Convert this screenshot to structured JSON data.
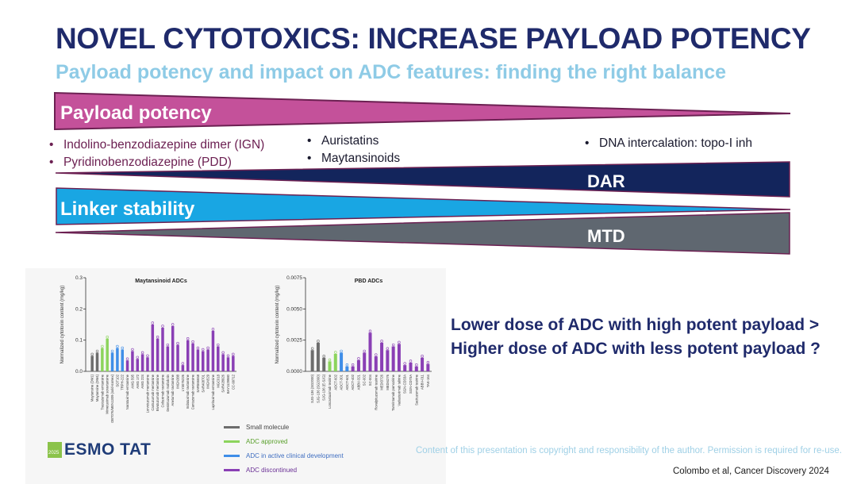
{
  "slide": {
    "title": "NOVEL CYTOTOXICS: INCREASE PAYLOAD POTENCY",
    "subtitle": "Payload potency and impact on ADC features: finding the right balance",
    "wedges": {
      "payload_potency": "Payload potency",
      "dar": "DAR",
      "linker_stability": "Linker stability",
      "mtd": "MTD"
    },
    "payload_classes": {
      "left": [
        "Indolino-benzodiazepine dimer (IGN)",
        "Pyridinobenzodiazepine (PDD)"
      ],
      "middle": [
        "Auristatins",
        "Maytansinoids"
      ],
      "right": [
        "DNA intercalation: topo-I inh"
      ]
    },
    "question_line1": "Lower dose of ADC with high potent payload >",
    "question_line2": "Higher dose of ADC with less potent payload ?",
    "copyright": "Content of this presentation is copyright and responsibility of the author. Permission is required for re-use.",
    "citation": "Colombo et al, Cancer Discovery 2024",
    "logo": {
      "year": "2025",
      "text": "ESMO TAT"
    },
    "colors": {
      "title": "#1f2a6b",
      "subtitle": "#8ecbe6",
      "potency": "#c4519a",
      "dar": "#13255c",
      "linker": "#19a6e3",
      "mtd": "#5f6770",
      "wedge_border": "#6c2052",
      "small_molecule": "#6d6d6d",
      "adc_approved": "#8cd45c",
      "adc_clinical": "#3f8ee8",
      "adc_discontinued": "#8a3fb5"
    }
  },
  "chart_data": [
    {
      "type": "bar",
      "title": "Maytansinoid ADCs",
      "ylabel": "Normalized cytotoxin content (mg/kg)",
      "ylim": [
        0,
        0.3
      ],
      "yticks": [
        "0.0",
        "0.1",
        "0.2",
        "0.3"
      ],
      "categories": [
        "Maytansine (DM1)",
        "Maytansine (DM4)",
        "Trastuzumab emtansine",
        "Mirvetuximab soravtansine",
        "OBT076/MEN1309 (sold-namex)",
        "SOT102",
        "TRPH-222",
        "Naratuximab emtansine",
        "AMG 595",
        "AMG 172",
        "AMG 224",
        "Lorvotuzumab mertansine",
        "Cantuzumab mertansine",
        "Bivatuzumab mertansine",
        "Coltuximab ravtansine",
        "Denintuzumab mafodotin",
        "Anetumab ravtansine",
        "IMGN388",
        "LY3076226",
        "Indatuximab ravtansine",
        "Cantuzumab ravtansine",
        "SAR566658",
        "SAR408701",
        "IMGN529",
        "Laprituximab emtansine",
        "MGC018",
        "SAR428926",
        "BAY1129980",
        "CC-99712"
      ],
      "groups": [
        "small_molecule",
        "small_molecule",
        "adc_approved",
        "adc_approved",
        "adc_clinical",
        "adc_clinical",
        "adc_clinical",
        "adc_discontinued",
        "adc_discontinued",
        "adc_discontinued",
        "adc_discontinued",
        "adc_discontinued",
        "adc_discontinued",
        "adc_discontinued",
        "adc_discontinued",
        "adc_discontinued",
        "adc_discontinued",
        "adc_discontinued",
        "adc_discontinued",
        "adc_discontinued",
        "adc_discontinued",
        "adc_discontinued",
        "adc_discontinued",
        "adc_discontinued",
        "adc_discontinued",
        "adc_discontinued",
        "adc_discontinued",
        "adc_discontinued",
        "adc_discontinued"
      ],
      "values": [
        0.05,
        0.06,
        0.075,
        0.105,
        0.06,
        0.075,
        0.07,
        0.035,
        0.065,
        0.04,
        0.055,
        0.045,
        0.15,
        0.105,
        0.14,
        0.08,
        0.145,
        0.085,
        0.02,
        0.1,
        0.09,
        0.07,
        0.065,
        0.07,
        0.13,
        0.08,
        0.055,
        0.045,
        0.05
      ]
    },
    {
      "type": "bar",
      "title": "PBD ADCs",
      "ylabel": "Normalized cytotoxin content (mg/kg)",
      "ylim": [
        0,
        0.0075
      ],
      "yticks": [
        "0.0000",
        "0.0025",
        "0.0050",
        "0.0075"
      ],
      "categories": [
        "SJG-136 (SG2000)",
        "SJG-136 (SG2000)",
        "SJG-136 (E-SJG)",
        "Loncastuximab tesirine",
        "ADCT-602",
        "ADCT-301",
        "ADCT-601",
        "ADCT-402",
        "ABBV-321",
        "SC-002",
        "SC-004",
        "Rovalpituzumab tesirine",
        "MEDI3726",
        "MEDI4276",
        "Tamrintamab pamozirine",
        "Vadastuximab talirine",
        "SGN-CD33A",
        "SGN-CD70A",
        "Sacituzumab tesirine",
        "ABBV-011",
        "TAK-164"
      ],
      "groups": [
        "small_molecule",
        "small_molecule",
        "small_molecule",
        "adc_approved",
        "adc_approved",
        "adc_clinical",
        "adc_clinical",
        "adc_discontinued",
        "adc_discontinued",
        "adc_discontinued",
        "adc_discontinued",
        "adc_discontinued",
        "adc_discontinued",
        "adc_discontinued",
        "adc_discontinued",
        "adc_discontinued",
        "adc_discontinued",
        "adc_discontinued",
        "adc_discontinued",
        "adc_discontinued",
        "adc_discontinued"
      ],
      "values": [
        0.0017,
        0.0023,
        0.0011,
        0.0008,
        0.0014,
        0.0015,
        0.0004,
        0.0004,
        0.0009,
        0.0015,
        0.0031,
        0.0012,
        0.0023,
        0.0017,
        0.002,
        0.0022,
        0.0005,
        0.0007,
        0.0004,
        0.0011,
        0.0006
      ]
    }
  ],
  "legend": [
    {
      "key": "small_molecule",
      "label": "Small molecule"
    },
    {
      "key": "adc_approved",
      "label": "ADC approved"
    },
    {
      "key": "adc_clinical",
      "label": "ADC in active clinical development"
    },
    {
      "key": "adc_discontinued",
      "label": "ADC discontinued"
    }
  ]
}
